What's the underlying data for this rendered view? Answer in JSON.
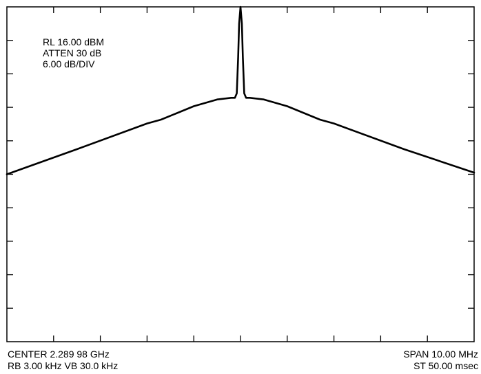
{
  "instrument": {
    "settings": {
      "reference_level": "RL 16.00 dBM",
      "attenuation": "ATTEN 30 dB",
      "scale": "6.00 dB/DIV"
    },
    "footer_left": {
      "center": "CENTER 2.289 98 GHz",
      "bandwidth": "RB 3.00 kHz VB 30.0 kHz"
    },
    "footer_right": {
      "span": "SPAN 10.00 MHz",
      "sweep_time": "ST 50.00 msec"
    }
  },
  "chart_data": {
    "type": "line",
    "title": "",
    "xlabel": "",
    "ylabel": "",
    "grid": "ticks-only",
    "xlim": [
      -5.0,
      5.0
    ],
    "ylim": [
      -44.0,
      16.0
    ],
    "x_divisions": 10,
    "y_divisions": 10,
    "line_color": "#000000",
    "series": [
      {
        "name": "",
        "x": [
          -5.0,
          -3.5,
          -2.0,
          -1.7,
          -1.0,
          -0.5,
          -0.2,
          -0.12,
          -0.08,
          -0.05,
          -0.03,
          0.0,
          0.03,
          0.05,
          0.08,
          0.12,
          0.2,
          0.5,
          1.0,
          1.7,
          2.0,
          3.5,
          5.0
        ],
        "y": [
          -14.0,
          -9.5,
          -4.9,
          -4.2,
          -1.8,
          -0.6,
          -0.3,
          -0.3,
          0.5,
          7.0,
          13.0,
          16.0,
          13.0,
          7.0,
          0.5,
          -0.3,
          -0.3,
          -0.6,
          -1.8,
          -4.2,
          -4.9,
          -9.5,
          -13.7
        ]
      }
    ]
  }
}
